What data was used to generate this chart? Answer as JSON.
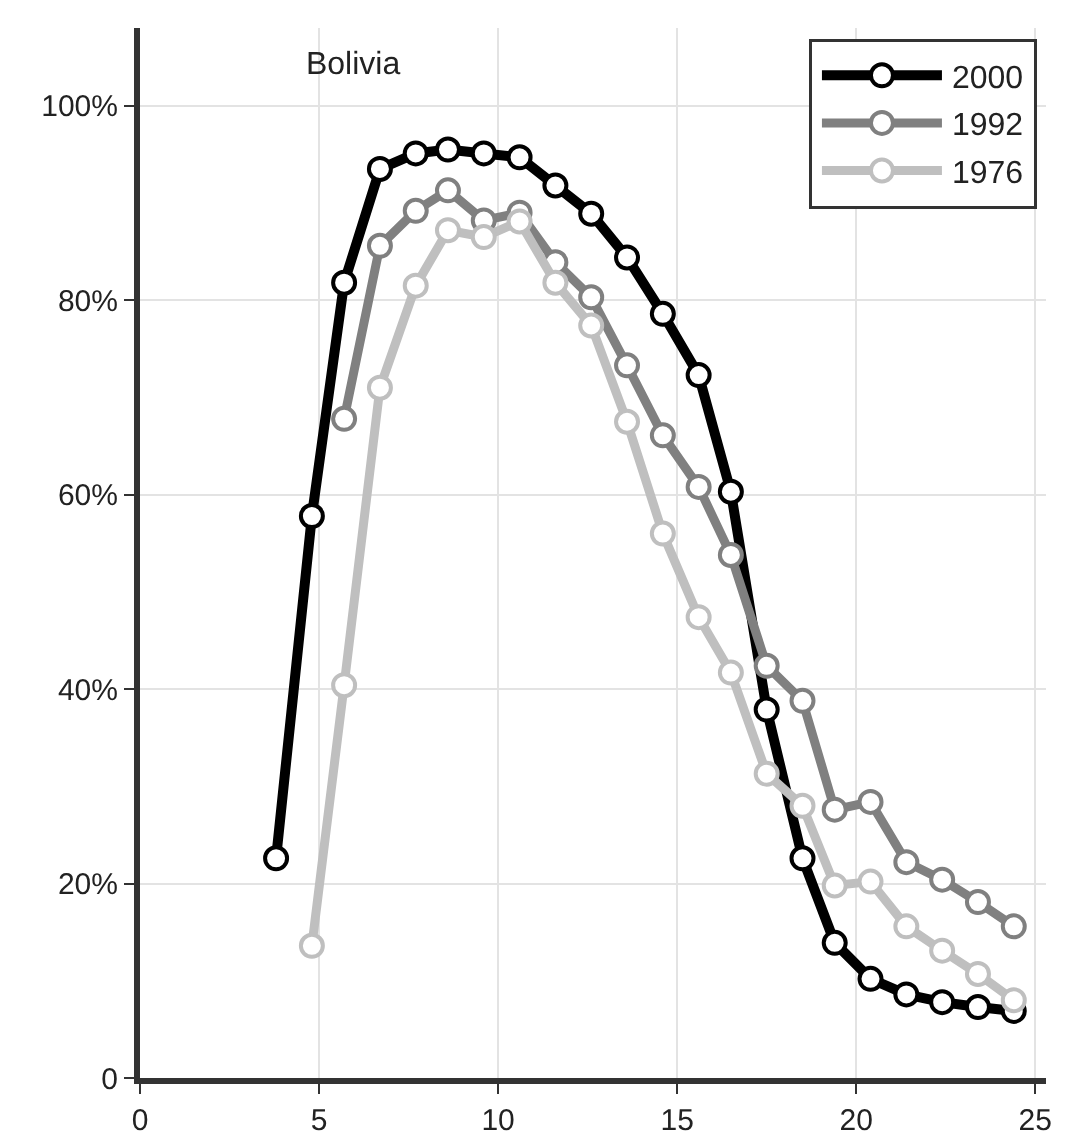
{
  "chart_data": {
    "type": "line",
    "title": "Bolivia",
    "x": [
      3.8,
      4.8,
      5.7,
      6.7,
      7.7,
      8.6,
      9.6,
      10.6,
      11.6,
      12.6,
      13.6,
      14.6,
      15.6,
      16.5,
      17.5,
      18.5,
      19.4,
      20.4,
      21.4,
      22.4,
      23.4,
      24.4
    ],
    "series": [
      {
        "name": "2000",
        "color": "#000000",
        "values": [
          22.6,
          57.8,
          81.8,
          93.5,
          95.1,
          95.5,
          95.1,
          94.7,
          91.8,
          88.9,
          84.4,
          78.6,
          72.3,
          60.3,
          37.9,
          22.6,
          13.9,
          10.2,
          8.6,
          7.8,
          7.3,
          6.9
        ]
      },
      {
        "name": "1992",
        "color": "#808080",
        "values": [
          null,
          null,
          67.8,
          85.6,
          89.2,
          91.3,
          88.2,
          89.0,
          83.9,
          80.3,
          73.3,
          66.1,
          60.8,
          53.8,
          42.4,
          38.8,
          27.6,
          28.4,
          22.2,
          20.4,
          18.1,
          15.6
        ]
      },
      {
        "name": "1976",
        "color": "#bfbfbf",
        "values": [
          null,
          13.6,
          40.4,
          71.0,
          81.5,
          87.2,
          86.5,
          88.1,
          81.8,
          77.4,
          67.5,
          56.0,
          47.4,
          41.7,
          31.3,
          28.0,
          19.8,
          20.2,
          15.6,
          13.1,
          10.7,
          8.0
        ]
      }
    ],
    "xlim": [
      0,
      25.3
    ],
    "xticks": [
      0,
      5,
      10,
      15,
      20,
      25
    ],
    "ylim": [
      0,
      108
    ],
    "yticks": [
      {
        "value": 0,
        "label": "0"
      },
      {
        "value": 20,
        "label": "20%"
      },
      {
        "value": 40,
        "label": "40%"
      },
      {
        "value": 60,
        "label": "60%"
      },
      {
        "value": 80,
        "label": "80%"
      },
      {
        "value": 100,
        "label": "100%"
      }
    ],
    "grid": true,
    "legend": "top right",
    "marker": "circle",
    "line_style": "solid"
  }
}
